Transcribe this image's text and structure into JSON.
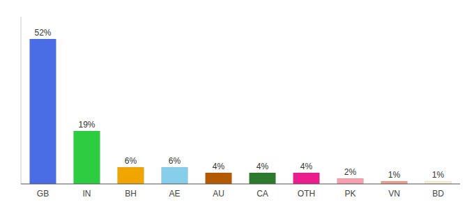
{
  "chart_data": {
    "type": "bar",
    "categories": [
      "GB",
      "IN",
      "BH",
      "AE",
      "AU",
      "CA",
      "OTH",
      "PK",
      "VN",
      "BD"
    ],
    "values": [
      52,
      19,
      6,
      6,
      4,
      4,
      4,
      2,
      1,
      1
    ],
    "value_labels": [
      "52%",
      "19%",
      "6%",
      "6%",
      "4%",
      "4%",
      "4%",
      "2%",
      "1%",
      "1%"
    ],
    "colors": [
      "#4a6de5",
      "#2ecc40",
      "#f0a500",
      "#87ceeb",
      "#b35a00",
      "#2d7a2d",
      "#e91e8c",
      "#f4a0b0",
      "#e8a090",
      "#f5f0d8"
    ],
    "ylim": [
      0,
      60
    ],
    "data_labels": true,
    "tick_labels": "x",
    "grid": false
  }
}
